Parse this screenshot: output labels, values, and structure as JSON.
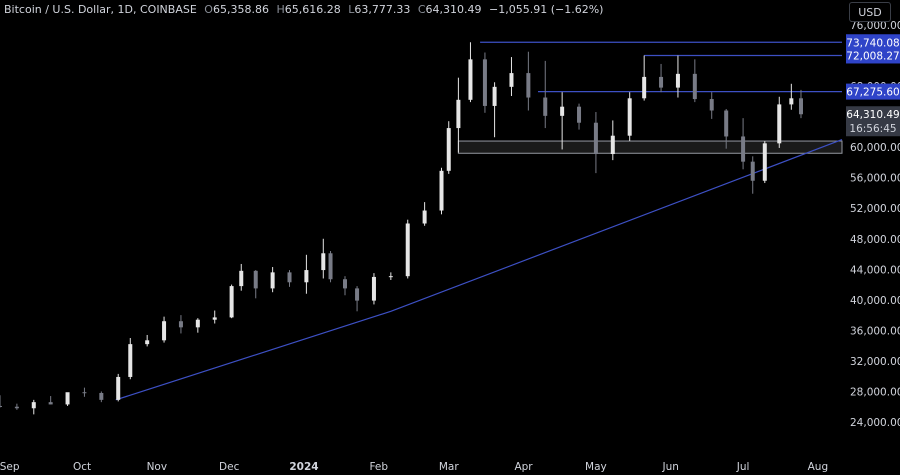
{
  "header": {
    "symbol": "Bitcoin / U.S. Dollar, 1D, COINBASE",
    "open_label": "O",
    "open": "65,358.86",
    "high_label": "H",
    "high": "65,616.28",
    "low_label": "L",
    "low": "63,777.33",
    "close_label": "C",
    "close": "64,310.49",
    "change": "−1,055.91 (−1.62%)"
  },
  "currency_button": "USD",
  "countdown": "16:56:45",
  "chart_data": {
    "type": "candlestick",
    "y_ticks": [
      24000,
      28000,
      32000,
      36000,
      40000,
      44000,
      48000,
      52000,
      56000,
      60000,
      64000,
      68000,
      72000,
      76000
    ],
    "y_tick_labels": [
      "24,000.00",
      "28,000.00",
      "32,000.00",
      "36,000.00",
      "40,000.00",
      "44,000.00",
      "48,000.00",
      "52,000.00",
      "56,000.00",
      "60,000.00",
      "64,000.00",
      "68,000.00",
      "72,000.00",
      "76,000.00"
    ],
    "ylim": [
      22000,
      79000
    ],
    "x_ticks": [
      "2023-09-01",
      "2023-10-01",
      "2023-11-01",
      "2023-12-01",
      "2024-01-01",
      "2024-02-01",
      "2024-03-01",
      "2024-04-01",
      "2024-05-01",
      "2024-06-01",
      "2024-07-01",
      "2024-08-01"
    ],
    "x_tick_labels": [
      "Sep",
      "Oct",
      "Nov",
      "Dec",
      "2024",
      "Feb",
      "Mar",
      "Apr",
      "May",
      "Jun",
      "Jul",
      "Aug"
    ],
    "xlim": [
      "2023-08-28",
      "2024-08-11"
    ],
    "price_tags": [
      {
        "value": 73740.08,
        "label": "73,740.08",
        "from": "2024-03-14"
      },
      {
        "value": 72008.27,
        "label": "72,008.27",
        "from": "2024-05-21"
      },
      {
        "value": 67275.6,
        "label": "67,275.60",
        "from": "2024-04-07"
      }
    ],
    "last_price": {
      "value": 64310.49,
      "label": "64,310.49"
    },
    "support_zone": {
      "from": "2024-03-05",
      "low": 59200,
      "high": 60800
    },
    "trendline": {
      "points": [
        [
          "2023-10-15",
          26900
        ],
        [
          "2024-02-06",
          38500
        ],
        [
          "2024-07-08",
          56900
        ]
      ],
      "extends_to": "2024-08-11"
    },
    "candles": [
      [
        "2023-08-28",
        26100,
        27500,
        25900,
        26000
      ],
      [
        "2023-09-04",
        26000,
        26400,
        25600,
        25800
      ],
      [
        "2023-09-11",
        25800,
        26900,
        25000,
        26600
      ],
      [
        "2023-09-18",
        26600,
        27400,
        26300,
        26300
      ],
      [
        "2023-09-25",
        26300,
        27500,
        26100,
        27900
      ],
      [
        "2023-10-02",
        27900,
        28500,
        27300,
        27800
      ],
      [
        "2023-10-09",
        27800,
        28000,
        26600,
        26900
      ],
      [
        "2023-10-16",
        26900,
        30300,
        26700,
        29900
      ],
      [
        "2023-10-21",
        29900,
        35000,
        29600,
        34200
      ],
      [
        "2023-10-28",
        34200,
        35400,
        33900,
        34700
      ],
      [
        "2023-11-04",
        34700,
        37800,
        34400,
        37200
      ],
      [
        "2023-11-11",
        37200,
        38000,
        35600,
        36400
      ],
      [
        "2023-11-18",
        36400,
        37600,
        35700,
        37400
      ],
      [
        "2023-11-25",
        37400,
        38600,
        36900,
        37700
      ],
      [
        "2023-12-02",
        37700,
        42000,
        37600,
        41800
      ],
      [
        "2023-12-06",
        41800,
        44700,
        41200,
        43800
      ],
      [
        "2023-12-12",
        43800,
        43900,
        40200,
        41500
      ],
      [
        "2023-12-19",
        41500,
        44300,
        41000,
        43600
      ],
      [
        "2023-12-26",
        43600,
        43900,
        41700,
        42300
      ],
      [
        "2024-01-02",
        42300,
        45900,
        40800,
        43900
      ],
      [
        "2024-01-09",
        43900,
        48000,
        42800,
        46100
      ],
      [
        "2024-01-12",
        46100,
        46400,
        42300,
        42700
      ],
      [
        "2024-01-18",
        42700,
        43100,
        40600,
        41500
      ],
      [
        "2024-01-23",
        41500,
        41800,
        38500,
        39900
      ],
      [
        "2024-01-30",
        39900,
        43500,
        39400,
        43000
      ],
      [
        "2024-02-06",
        43000,
        43600,
        42600,
        43100
      ],
      [
        "2024-02-13",
        43100,
        50500,
        42800,
        50000
      ],
      [
        "2024-02-20",
        50000,
        52800,
        49700,
        51700
      ],
      [
        "2024-02-27",
        51700,
        57300,
        51200,
        56900
      ],
      [
        "2024-03-01",
        56900,
        63400,
        56500,
        62500
      ],
      [
        "2024-03-05",
        62500,
        69100,
        59300,
        66200
      ],
      [
        "2024-03-10",
        66200,
        73740,
        65900,
        71500
      ],
      [
        "2024-03-16",
        71500,
        72400,
        64500,
        65400
      ],
      [
        "2024-03-20",
        65400,
        68500,
        61300,
        67900
      ],
      [
        "2024-03-27",
        67900,
        71800,
        66700,
        69700
      ],
      [
        "2024-04-03",
        69700,
        72500,
        64800,
        66500
      ],
      [
        "2024-04-10",
        66500,
        71300,
        62500,
        64100
      ],
      [
        "2024-04-17",
        64100,
        67200,
        59700,
        65300
      ],
      [
        "2024-04-24",
        65300,
        65700,
        62300,
        63200
      ],
      [
        "2024-05-01",
        63200,
        64600,
        56600,
        59100
      ],
      [
        "2024-05-08",
        59100,
        63500,
        58300,
        61500
      ],
      [
        "2024-05-15",
        61500,
        67200,
        60800,
        66400
      ],
      [
        "2024-05-21",
        66400,
        72008,
        66100,
        69200
      ],
      [
        "2024-05-28",
        69200,
        70900,
        67200,
        67800
      ],
      [
        "2024-06-04",
        67800,
        72000,
        66500,
        69600
      ],
      [
        "2024-06-11",
        69600,
        71500,
        65900,
        66300
      ],
      [
        "2024-06-18",
        66300,
        67200,
        63700,
        64800
      ],
      [
        "2024-06-24",
        64800,
        65000,
        59800,
        61400
      ],
      [
        "2024-07-01",
        61400,
        63800,
        57100,
        58100
      ],
      [
        "2024-07-05",
        58100,
        58800,
        53900,
        55600
      ],
      [
        "2024-07-10",
        55600,
        60800,
        55300,
        60500
      ],
      [
        "2024-07-16",
        60500,
        66600,
        59900,
        65600
      ],
      [
        "2024-07-21",
        65600,
        68300,
        64900,
        66400
      ],
      [
        "2024-07-25",
        66400,
        67500,
        63800,
        64310
      ]
    ]
  }
}
